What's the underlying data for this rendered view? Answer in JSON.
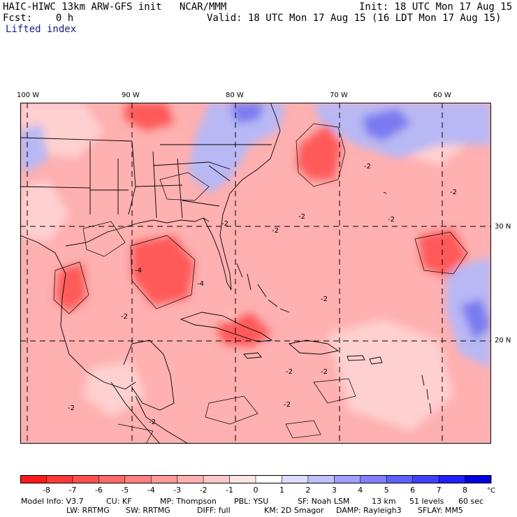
{
  "header": {
    "title_left": "HAIC-HIWC 13km ARW-GFS init   NCAR/MMM",
    "fcst": "Fcst:    0 h",
    "field": "Lifted index",
    "init": "Init: 18 UTC Mon 17 Aug 15",
    "valid": "Valid: 18 UTC Mon 17 Aug 15 (16 LDT Mon 17 Aug 15)"
  },
  "longitude_labels": [
    "100 W",
    "90 W",
    "80 W",
    "70 W",
    "60 W"
  ],
  "latitude_labels": [
    "30 N",
    "20 N"
  ],
  "contour_labels": [
    "-2",
    "-4",
    "-2",
    "-2",
    "-2",
    "-2",
    "-4",
    "-2",
    "-2",
    "-2",
    "-2",
    "-2",
    "-2",
    "-2",
    "-2"
  ],
  "colorbar": {
    "ticks": [
      "-8",
      "-7",
      "-6",
      "-5",
      "-4",
      "-3",
      "-2",
      "-1",
      "0",
      "1",
      "2",
      "3",
      "4",
      "5",
      "6",
      "7",
      "8"
    ],
    "unit": "°C",
    "colors": [
      "#ff1a1a",
      "#ff3838",
      "#ff5050",
      "#ff6868",
      "#ff8080",
      "#ff9898",
      "#ffb0b0",
      "#ffc8c8",
      "#ffe4e4",
      "#ffffff",
      "#dcdcff",
      "#c0c0ff",
      "#a0a0ff",
      "#8080ff",
      "#6060ff",
      "#4040ff",
      "#2020ff",
      "#0000e0"
    ]
  },
  "footer": {
    "line1": [
      "Model Info: V3.7",
      "CU: KF",
      "MP: Thompson",
      "PBL: YSU",
      "SF: Noah LSM",
      "13 km",
      "51 levels",
      "60 sec"
    ],
    "line2": [
      "LW: RRTMG",
      "SW: RRTMG",
      "DIFF: full",
      "KM: 2D Smagor",
      "DAMP: Rayleigh3",
      "SFLAY: MM5"
    ]
  },
  "colors": {
    "map_base": "#ffb0b0",
    "strong_neg": "#ff5a5a",
    "light_neg": "#ffd0d0",
    "positive": "#b8b8f4",
    "strong_pos": "#7a7af0",
    "grid": "#000000"
  }
}
